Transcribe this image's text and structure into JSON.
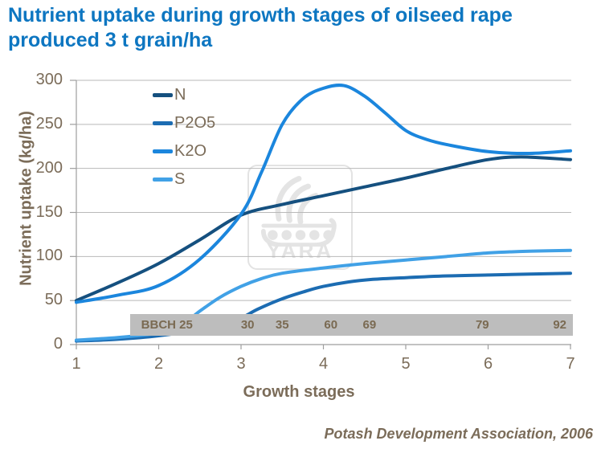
{
  "title": {
    "line1": "Nutrient uptake during growth stages of oilseed rape",
    "line2": "produced 3 t grain/ha"
  },
  "watermark": {
    "text": "YARA"
  },
  "source": {
    "text": "Potash Development Association, 2006"
  },
  "bbch_scale": {
    "labels": [
      {
        "text": "BBCH 25",
        "stage": 2.1
      },
      {
        "text": "30",
        "stage": 3.08
      },
      {
        "text": "35",
        "stage": 3.5
      },
      {
        "text": "60",
        "stage": 4.09
      },
      {
        "text": "69",
        "stage": 4.56
      },
      {
        "text": "79",
        "stage": 5.93
      },
      {
        "text": "92",
        "stage": 6.87
      }
    ]
  },
  "chart_data": {
    "type": "line",
    "title": "Nutrient uptake during growth stages of oilseed rape produced 3 t grain/ha",
    "xlabel": "Growth stages",
    "ylabel": "Nutrient uptake (kg/ha)",
    "xlim": [
      1,
      7
    ],
    "ylim": [
      0,
      300
    ],
    "x_ticks": [
      1,
      2,
      3,
      4,
      5,
      6,
      7
    ],
    "y_ticks": [
      0,
      50,
      100,
      150,
      200,
      250,
      300
    ],
    "grid": true,
    "legend_position": "upper-left-inside",
    "legend_entries": [
      "N",
      "P2O5",
      "K2O",
      "S"
    ],
    "series": [
      {
        "name": "N",
        "color": "#15507f",
        "points": [
          [
            1,
            50
          ],
          [
            1.5,
            70
          ],
          [
            2,
            92
          ],
          [
            2.5,
            119
          ],
          [
            3,
            147
          ],
          [
            3.5,
            159
          ],
          [
            4,
            169
          ],
          [
            4.5,
            179
          ],
          [
            5,
            189
          ],
          [
            5.5,
            200
          ],
          [
            6,
            210
          ],
          [
            6.4,
            213
          ],
          [
            7,
            210
          ]
        ]
      },
      {
        "name": "P2O5",
        "color": "#1c6cb2",
        "points": [
          [
            1,
            4
          ],
          [
            1.5,
            6
          ],
          [
            2,
            10
          ],
          [
            2.5,
            17
          ],
          [
            2.8,
            24
          ],
          [
            3,
            30
          ],
          [
            3.2,
            40
          ],
          [
            3.5,
            52
          ],
          [
            3.8,
            61
          ],
          [
            4,
            66
          ],
          [
            4.3,
            71
          ],
          [
            4.6,
            74
          ],
          [
            5,
            76
          ],
          [
            5.5,
            78
          ],
          [
            6,
            79
          ],
          [
            6.5,
            80
          ],
          [
            7,
            81
          ]
        ]
      },
      {
        "name": "K2O",
        "color": "#1b86dd",
        "points": [
          [
            1,
            48
          ],
          [
            1.5,
            56
          ],
          [
            2,
            67
          ],
          [
            2.5,
            97
          ],
          [
            3,
            148
          ],
          [
            3.25,
            196
          ],
          [
            3.5,
            250
          ],
          [
            3.75,
            279
          ],
          [
            4,
            291
          ],
          [
            4.25,
            294
          ],
          [
            4.5,
            282
          ],
          [
            4.75,
            263
          ],
          [
            5,
            243
          ],
          [
            5.25,
            233
          ],
          [
            5.5,
            227
          ],
          [
            6,
            219
          ],
          [
            6.5,
            217
          ],
          [
            7,
            220
          ]
        ]
      },
      {
        "name": "S",
        "color": "#41a1e6",
        "points": [
          [
            1,
            5
          ],
          [
            1.5,
            8
          ],
          [
            2,
            13
          ],
          [
            2.25,
            20
          ],
          [
            2.5,
            38
          ],
          [
            2.75,
            54
          ],
          [
            3,
            66
          ],
          [
            3.25,
            75
          ],
          [
            3.5,
            81
          ],
          [
            4,
            87
          ],
          [
            4.5,
            92
          ],
          [
            5,
            96
          ],
          [
            5.5,
            100
          ],
          [
            6,
            104
          ],
          [
            6.5,
            106
          ],
          [
            7,
            107
          ]
        ]
      }
    ]
  }
}
